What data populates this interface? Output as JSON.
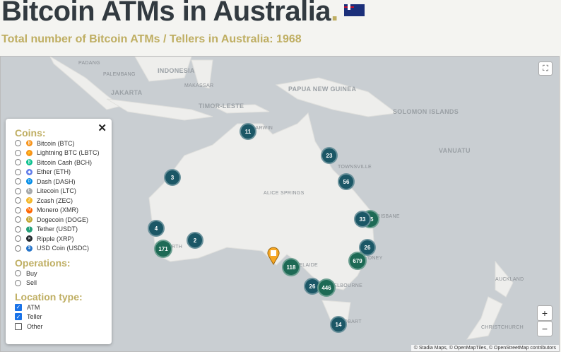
{
  "title": "Bitcoin ATMs in Australia",
  "title_dot": ".",
  "subtitle": "Total number of Bitcoin ATMs / Tellers in Australia: 1968",
  "map": {
    "labels": [
      "PADANG",
      "PALEMBANG",
      "JAKARTA",
      "INDONESIA",
      "MAKASSAR",
      "PAPUA NEW GUINEA",
      "TIMOR-LESTE",
      "SOLOMON ISLANDS",
      "VANUATU",
      "TOWNSVILLE",
      "ALICE SPRINGS",
      "BRISBANE",
      "SYDNEY",
      "ADELAIDE",
      "MELBOURNE",
      "HOBART",
      "AUCKLAND",
      "CHRISTCHURCH",
      "PERTH",
      "DARWIN"
    ],
    "clusters": [
      "11",
      "23",
      "3",
      "56",
      "33",
      "55",
      "4",
      "2",
      "171",
      "26",
      "679",
      "118",
      "26",
      "446",
      "14"
    ],
    "attribution": "© Stadia Maps, © OpenMapTiles, © OpenStreetMap contributors",
    "zoom_in": "+",
    "zoom_out": "−"
  },
  "filters": {
    "coins_heading": "Coins:",
    "coins": [
      {
        "label": "Bitcoin (BTC)",
        "color": "#f7931a",
        "glyph": "₿"
      },
      {
        "label": "Lightning BTC (LBTC)",
        "color": "#f7931a",
        "glyph": "⚡"
      },
      {
        "label": "Bitcoin Cash (BCH)",
        "color": "#0ac18e",
        "glyph": "₿"
      },
      {
        "label": "Ether (ETH)",
        "color": "#627eea",
        "glyph": "◆"
      },
      {
        "label": "Dash (DASH)",
        "color": "#008ce7",
        "glyph": "D"
      },
      {
        "label": "Litecoin (LTC)",
        "color": "#a6a9aa",
        "glyph": "Ł"
      },
      {
        "label": "Zcash (ZEC)",
        "color": "#f4b728",
        "glyph": "ℤ"
      },
      {
        "label": "Monero (XMR)",
        "color": "#ff6600",
        "glyph": "M"
      },
      {
        "label": "Dogecoin (DOGE)",
        "color": "#c2a633",
        "glyph": "D"
      },
      {
        "label": "Tether (USDT)",
        "color": "#26a17b",
        "glyph": "T"
      },
      {
        "label": "Ripple (XRP)",
        "color": "#23292f",
        "glyph": "✕"
      },
      {
        "label": "USD Coin (USDC)",
        "color": "#2775ca",
        "glyph": "$"
      }
    ],
    "operations_heading": "Operations:",
    "operations": [
      "Buy",
      "Sell"
    ],
    "location_heading": "Location type:",
    "locations": [
      {
        "label": "ATM",
        "checked": true
      },
      {
        "label": "Teller",
        "checked": true
      },
      {
        "label": "Other",
        "checked": false
      }
    ]
  }
}
